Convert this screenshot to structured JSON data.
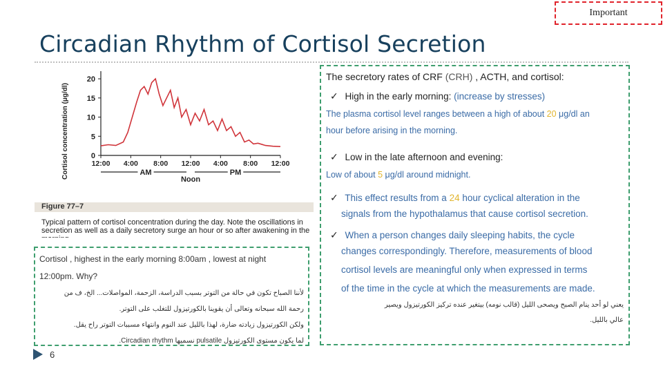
{
  "badge": {
    "label": "Important"
  },
  "slide": {
    "title": "Circadian Rhythm of Cortisol Secretion",
    "number": "6"
  },
  "figure": {
    "label": "Figure 77–7",
    "caption": "Typical pattern of cortisol concentration during the day. Note the oscillations in secretion as well as a daily secretory surge an hour or so after awakening in the morning."
  },
  "chart_data": {
    "type": "line",
    "ylabel": "Cortisol concentration (μg/dl)",
    "yticks": [
      0,
      5,
      10,
      15,
      20
    ],
    "ylim": [
      0,
      22
    ],
    "xticks": [
      "12:00",
      "4:00",
      "8:00",
      "12:00",
      "4:00",
      "8:00",
      "12:00"
    ],
    "xlim": [
      0,
      24
    ],
    "period_labels": [
      "AM",
      "Noon",
      "PM"
    ],
    "series": [
      {
        "x": [
          0,
          1,
          2,
          3,
          3.6,
          4.2,
          4.8,
          5.3,
          5.8,
          6.3,
          6.8,
          7.3,
          7.8,
          8.3,
          8.8,
          9.3,
          9.8,
          10.3,
          10.8,
          11.4,
          12,
          12.6,
          13.2,
          13.8,
          14.4,
          15,
          15.6,
          16.2,
          16.8,
          17.4,
          18,
          18.6,
          19.2,
          19.8,
          20.4,
          21,
          22,
          23,
          24
        ],
        "y": [
          2.5,
          2.8,
          2.6,
          3.5,
          6,
          10,
          14,
          17,
          18,
          16,
          19,
          20,
          16,
          13,
          15,
          17,
          12.5,
          15,
          10,
          12,
          8,
          11,
          9,
          12,
          8,
          9,
          6.5,
          9.5,
          6.5,
          7.5,
          5,
          6,
          3.5,
          4,
          3,
          3.2,
          2.6,
          2.4,
          2.3
        ]
      }
    ]
  },
  "left_box": {
    "line1": "Cortisol , highest in the early morning 8:00am , lowest at night",
    "line2": "12:00pm. Why?",
    "ar1": "لأننا الصباح تكون في حالة من التوتر بسبب الدراسة، الزحمة، المواصلات... الخ، ف من",
    "ar2": "رحمة الله سبحانه وتعالى أن يقوينا بالكورتيزول للتغلب على التوتر.",
    "ar3": "ولكن الكورتيزول زيادته ضارة، لهذا بالليل عند النوم وانتهاء مسببات التوتر راح يقل.",
    "ar4": "لما يكون مستوى الكورتيزول pulsatile نسميها Circadian rhythm."
  },
  "right_box": {
    "intro_a": "The secretory rates of CRF",
    "intro_b": "(CRH)",
    "intro_c": ", ACTH, and cortisol:",
    "p1_a": "High in the early morning:",
    "p1_b": "(increase by stresses)",
    "p1_detail_1_a": "The plasma cortisol level ranges between a high of about",
    "p1_detail_1_val": "20",
    "p1_detail_1_b": "μg/dl an",
    "p1_detail_2": "hour before arising in the morning.",
    "p2": "Low in the late afternoon and evening:",
    "p2_detail_a": "Low of about",
    "p2_detail_val": "5",
    "p2_detail_b": "μg/dl around midnight.",
    "p3_a": "This effect results from a",
    "p3_val": "24",
    "p3_b": "hour cyclical alteration in the",
    "p3_2": "signals from the hypothalamus that cause cortisol secretion.",
    "p4_1": "When a person changes daily sleeping habits, the cycle",
    "p4_2": "changes correspondingly.  Therefore, measurements of blood",
    "p4_3": "cortisol levels are meaningful only when expressed in terms",
    "p4_4": "of the time in the cycle at which the measurements are made.",
    "ar1": "يعني لو أحد ينام الصبح ويصحى الليل (قالب نومه) بيتغير عنده تركيز الكورتيزول ويصير",
    "ar2": "عالي بالليل."
  },
  "colors": {
    "title": "#17405d",
    "border": "#3e9e6e",
    "badge_border": "#e0222a",
    "curve": "#d0343a",
    "highlight": "#e1b52e",
    "note": "#3a6ba6"
  },
  "icons": {
    "check": "check-icon",
    "play": "play-icon"
  }
}
